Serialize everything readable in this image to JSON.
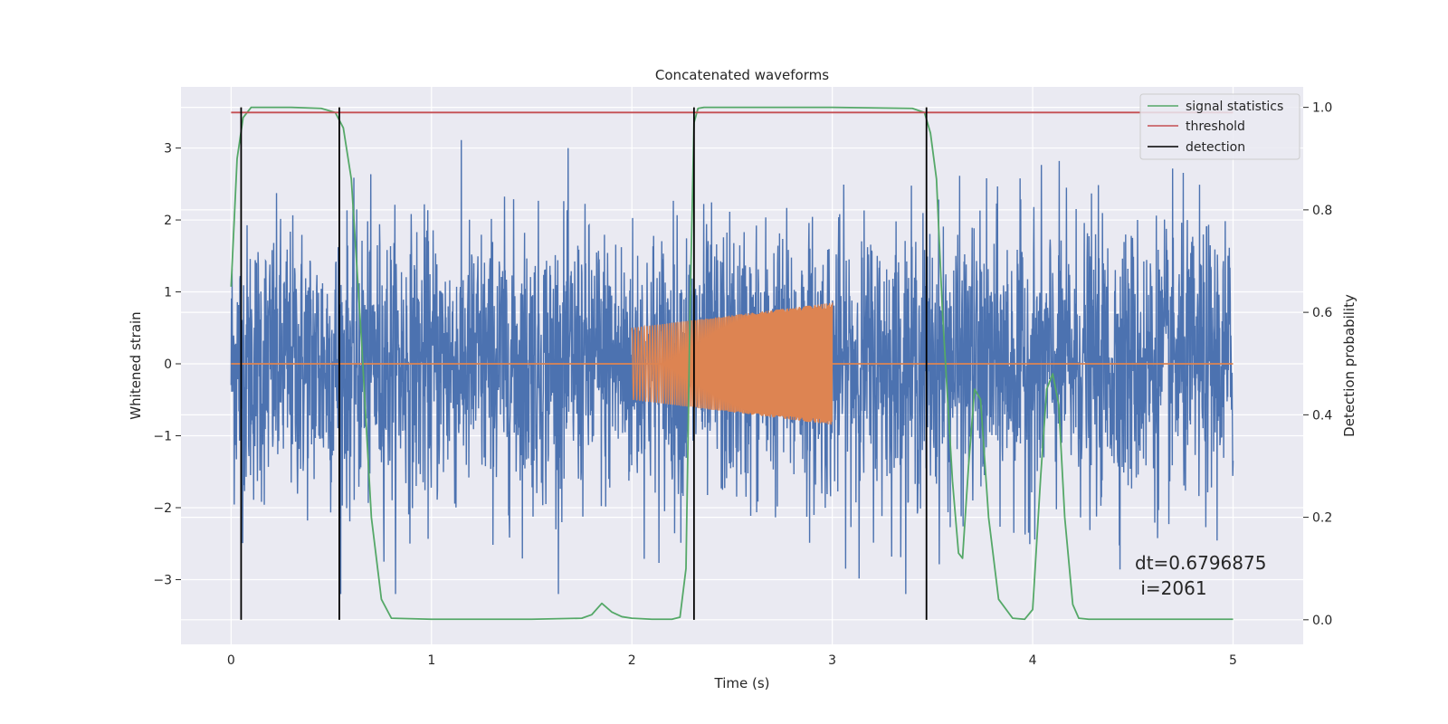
{
  "chart_data": {
    "type": "line",
    "title": "Concatenated waveforms",
    "xlabel": "Time (s)",
    "ylabel": "Whitened strain",
    "ylabel_right": "Detection probability",
    "xlim": [
      -0.25,
      5.35
    ],
    "ylim": [
      -3.9,
      3.85
    ],
    "ylim_right": [
      -0.048,
      1.04
    ],
    "xticks": [
      0,
      1,
      2,
      3,
      4,
      5
    ],
    "yticks": [
      -3,
      -2,
      -1,
      0,
      1,
      2,
      3
    ],
    "yticks_right": [
      0.0,
      0.2,
      0.4,
      0.6,
      0.8,
      1.0
    ],
    "xtick_labels": [
      "0",
      "1",
      "2",
      "3",
      "4",
      "5"
    ],
    "ytick_labels": [
      "−3",
      "−2",
      "−1",
      "0",
      "1",
      "2",
      "3"
    ],
    "ytick_right_labels": [
      "0.0",
      "0.2",
      "0.4",
      "0.6",
      "0.8",
      "1.0"
    ],
    "grid": true,
    "legend_position": "top-right",
    "colors": {
      "strain": "#4c72b0",
      "injected": "#dd8452",
      "signal_statistics": "#55a868",
      "threshold": "#c44e52",
      "detection": "#000000",
      "background": "#eaeaf2",
      "grid": "#ffffff"
    },
    "legend": [
      {
        "label": "signal statistics",
        "color": "#55a868"
      },
      {
        "label": "threshold",
        "color": "#c44e52"
      },
      {
        "label": "detection",
        "color": "#000000"
      }
    ],
    "series": [
      {
        "name": "signal statistics",
        "axis": "right",
        "x": [
          0.0,
          0.03,
          0.06,
          0.1,
          0.15,
          0.3,
          0.45,
          0.52,
          0.56,
          0.6,
          0.65,
          0.7,
          0.75,
          0.8,
          1.0,
          1.5,
          1.75,
          1.8,
          1.85,
          1.9,
          1.95,
          2.0,
          2.1,
          2.2,
          2.24,
          2.27,
          2.29,
          2.31,
          2.33,
          2.36,
          2.5,
          3.0,
          3.4,
          3.46,
          3.49,
          3.52,
          3.55,
          3.6,
          3.63,
          3.65,
          3.68,
          3.71,
          3.74,
          3.78,
          3.83,
          3.9,
          3.96,
          4.0,
          4.04,
          4.07,
          4.1,
          4.13,
          4.16,
          4.2,
          4.23,
          4.28,
          4.4,
          5.0
        ],
        "y": [
          0.65,
          0.9,
          0.98,
          1.0,
          1.0,
          1.0,
          0.998,
          0.99,
          0.96,
          0.86,
          0.55,
          0.2,
          0.04,
          0.003,
          0.001,
          0.001,
          0.003,
          0.01,
          0.032,
          0.015,
          0.006,
          0.003,
          0.001,
          0.001,
          0.005,
          0.1,
          0.6,
          0.97,
          0.998,
          1.0,
          1.0,
          1.0,
          0.998,
          0.99,
          0.95,
          0.86,
          0.6,
          0.27,
          0.13,
          0.12,
          0.3,
          0.45,
          0.43,
          0.2,
          0.04,
          0.003,
          0.001,
          0.02,
          0.28,
          0.45,
          0.48,
          0.42,
          0.2,
          0.03,
          0.003,
          0.001,
          0.001,
          0.001
        ]
      },
      {
        "name": "threshold",
        "axis": "right",
        "x": [
          0.0,
          5.0
        ],
        "y": [
          0.99,
          0.99
        ]
      },
      {
        "name": "detection",
        "axis": "right",
        "type": "vlines",
        "x": [
          0.05,
          0.54,
          2.31,
          3.47
        ],
        "y_range": [
          0.0,
          1.0
        ]
      }
    ],
    "strain_noise": {
      "x_range": [
        0.0,
        5.0
      ],
      "typical_amplitude": 1.0,
      "max_abs": 3.2,
      "description_none": ""
    },
    "injected_chirp": {
      "x_range": [
        2.0,
        3.0
      ],
      "amplitude_start": 0.5,
      "amplitude_end": 0.85,
      "baseline": 0.0
    },
    "annotations": [
      {
        "text": "dt=0.6796875"
      },
      {
        "text": " i=2061"
      }
    ]
  }
}
